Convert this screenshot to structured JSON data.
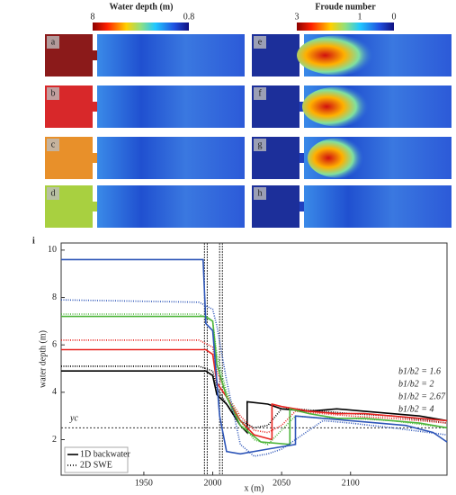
{
  "panels": {
    "depth_title": "Water depth (m)",
    "depth_max": "8",
    "depth_min": "0.8",
    "froude_title": "Froude number",
    "froude_max": "3",
    "froude_mid": "1",
    "froude_min": "0",
    "letters": [
      "a",
      "b",
      "c",
      "d",
      "e",
      "f",
      "g",
      "h"
    ],
    "figure_letter": "i"
  },
  "chart_data": {
    "type": "line",
    "xlabel": "x (m)",
    "ylabel": "water depth (m)",
    "xlim": [
      1890,
      2170
    ],
    "ylim": [
      0.5,
      10.3
    ],
    "xticks": [
      1950,
      2000,
      2050,
      2100
    ],
    "yticks": [
      2,
      4,
      6,
      8,
      10
    ],
    "critical_depth": {
      "label": "yc",
      "value": 2.5
    },
    "gates": [
      1994,
      1996,
      2005,
      2007
    ],
    "line_styles": [
      "1D backwater",
      "2D SWE"
    ],
    "series": [
      {
        "name": "b1/b2 = 1.6",
        "color": "#000000",
        "oned": {
          "x": [
            1890,
            1995,
            2000,
            2003,
            2010,
            2020,
            2025,
            2025,
            2040,
            2050,
            2070,
            2090,
            2110,
            2130,
            2150,
            2170
          ],
          "values": [
            4.9,
            4.9,
            4.7,
            3.9,
            3.5,
            2.6,
            2.3,
            3.6,
            3.5,
            3.3,
            3.2,
            3.3,
            3.2,
            3.1,
            3.0,
            2.8
          ]
        },
        "twod": {
          "x": [
            1890,
            1990,
            2000,
            2003,
            2010,
            2020,
            2030,
            2040,
            2050,
            2060,
            2080,
            2100,
            2130,
            2170
          ],
          "values": [
            5.1,
            5.1,
            4.9,
            4.2,
            3.5,
            2.8,
            2.5,
            2.6,
            3.3,
            3.3,
            3.2,
            3.1,
            3.0,
            2.7
          ]
        }
      },
      {
        "name": "b1/b2 = 2",
        "color": "#e8231f",
        "oned": {
          "x": [
            1890,
            1995,
            2000,
            2003,
            2010,
            2020,
            2030,
            2043,
            2043,
            2050,
            2070,
            2090,
            2110,
            2130,
            2150,
            2170
          ],
          "values": [
            5.8,
            5.8,
            5.6,
            4.4,
            3.8,
            2.8,
            2.2,
            2.0,
            3.5,
            3.4,
            3.2,
            3.1,
            3.1,
            3.0,
            2.9,
            2.8
          ]
        },
        "twod": {
          "x": [
            1890,
            1990,
            2000,
            2003,
            2010,
            2020,
            2030,
            2040,
            2050,
            2060,
            2080,
            2100,
            2130,
            2170
          ],
          "values": [
            6.2,
            6.2,
            5.9,
            4.9,
            3.9,
            3.0,
            2.4,
            2.3,
            2.6,
            3.2,
            3.1,
            3.0,
            2.9,
            2.7
          ]
        }
      },
      {
        "name": "b1/b2 = 2.67",
        "color": "#4db53a",
        "oned": {
          "x": [
            1890,
            1995,
            2000,
            2003,
            2010,
            2020,
            2035,
            2056,
            2056,
            2070,
            2090,
            2110,
            2130,
            2150,
            2170
          ],
          "values": [
            7.2,
            7.2,
            7.0,
            5.2,
            3.8,
            2.6,
            1.9,
            1.8,
            3.3,
            3.1,
            2.9,
            2.9,
            2.8,
            2.7,
            2.5
          ]
        },
        "twod": {
          "x": [
            1890,
            1990,
            2000,
            2003,
            2010,
            2020,
            2030,
            2040,
            2050,
            2060,
            2080,
            2100,
            2130,
            2170
          ],
          "values": [
            7.3,
            7.3,
            7.0,
            5.6,
            4.0,
            2.8,
            2.0,
            1.8,
            2.4,
            3.0,
            2.9,
            2.9,
            2.8,
            2.5
          ]
        }
      },
      {
        "name": "b1/b2 = 4",
        "color": "#2d55b8",
        "oned": {
          "x": [
            1890,
            1993,
            1995,
            2000,
            2005,
            2010,
            2020,
            2040,
            2060,
            2060,
            2080,
            2100,
            2120,
            2140,
            2160,
            2170
          ],
          "values": [
            9.6,
            9.6,
            6.9,
            6.6,
            3.0,
            1.5,
            1.4,
            1.6,
            1.8,
            3.0,
            2.9,
            2.8,
            2.7,
            2.6,
            2.3,
            1.9
          ]
        },
        "twod": {
          "x": [
            1890,
            1990,
            2000,
            2003,
            2010,
            2020,
            2030,
            2040,
            2050,
            2060,
            2080,
            2100,
            2130,
            2170
          ],
          "values": [
            7.9,
            7.8,
            7.5,
            6.8,
            4.5,
            1.8,
            1.3,
            1.4,
            1.6,
            2.0,
            2.8,
            2.7,
            2.5,
            2.2
          ]
        }
      }
    ]
  }
}
